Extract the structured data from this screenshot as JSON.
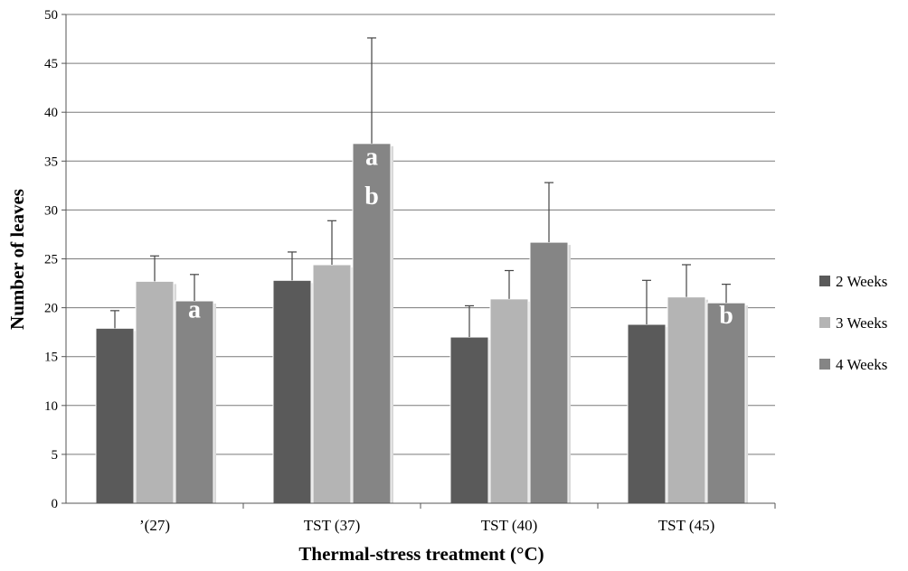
{
  "chart_data": {
    "type": "bar",
    "xlabel": "Thermal-stress treatment (°C)",
    "ylabel": "Number of  leaves",
    "ylim": [
      0,
      50
    ],
    "yticks": [
      0,
      5,
      10,
      15,
      20,
      25,
      30,
      35,
      40,
      45,
      50
    ],
    "grid": true,
    "legend_position": "right",
    "categories": [
      "’(27)",
      "TST (37)",
      "TST (40)",
      "TST (45)"
    ],
    "series": [
      {
        "name": "2 Weeks",
        "color": "#5a5a5a",
        "values": [
          17.9,
          22.8,
          17.0,
          18.3
        ],
        "errors": [
          1.8,
          2.9,
          3.2,
          4.5
        ]
      },
      {
        "name": "3 Weeks",
        "color": "#b4b4b4",
        "values": [
          22.7,
          24.4,
          20.9,
          21.1
        ],
        "errors": [
          2.6,
          4.5,
          2.9,
          3.3
        ]
      },
      {
        "name": "4 Weeks",
        "color": "#858585",
        "values": [
          20.7,
          36.8,
          26.7,
          20.5
        ],
        "errors": [
          2.7,
          10.8,
          6.1,
          1.9
        ]
      }
    ],
    "annotations": [
      {
        "category": 0,
        "series": 2,
        "text": "a",
        "y": 19.0
      },
      {
        "category": 1,
        "series": 2,
        "text": "a",
        "y": 34.6
      },
      {
        "category": 1,
        "series": 2,
        "text": "b",
        "y": 30.6
      },
      {
        "category": 3,
        "series": 2,
        "text": "b",
        "y": 18.4
      }
    ]
  }
}
